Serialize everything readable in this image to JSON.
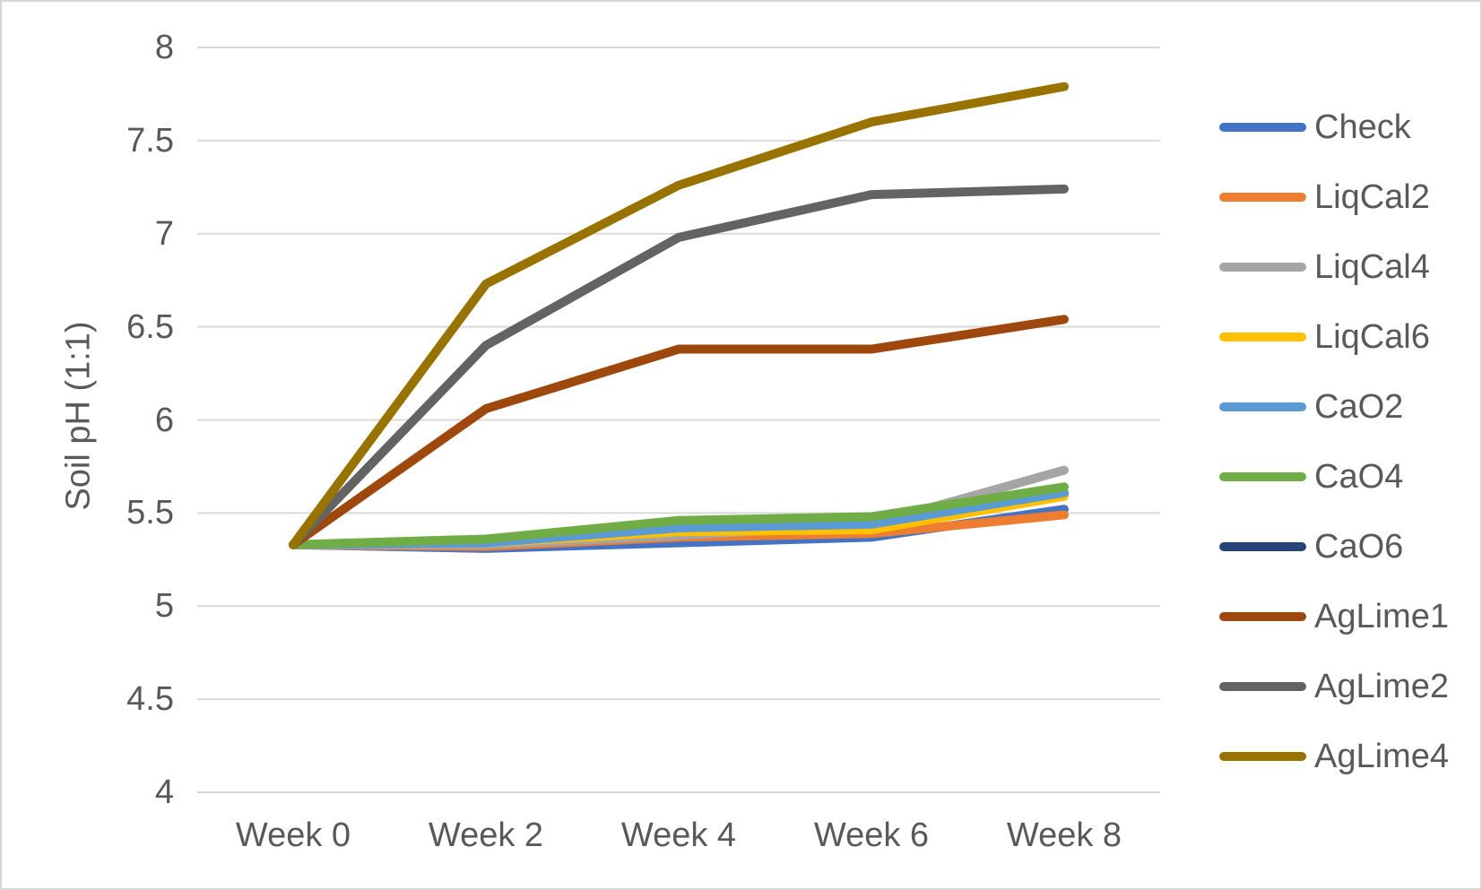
{
  "chart_data": {
    "type": "line",
    "title": "",
    "xlabel": "",
    "ylabel": "Soil pH (1:1)",
    "categories": [
      "Week 0",
      "Week 2",
      "Week 4",
      "Week 6",
      "Week 8"
    ],
    "ylim": [
      4,
      8
    ],
    "ytick_step": 0.5,
    "ytick_labels": [
      "4",
      "4.5",
      "5",
      "5.5",
      "6",
      "6.5",
      "7",
      "7.5",
      "8"
    ],
    "grid": true,
    "legend_position": "right",
    "series": [
      {
        "name": "Check",
        "color": "#4472C4",
        "values": [
          5.33,
          5.31,
          5.34,
          5.37,
          5.52
        ]
      },
      {
        "name": "LiqCal2",
        "color": "#ED7D31",
        "values": [
          5.33,
          5.32,
          5.37,
          5.39,
          5.49
        ]
      },
      {
        "name": "LiqCal4",
        "color": "#A5A5A5",
        "values": [
          5.33,
          5.33,
          5.38,
          5.44,
          5.73
        ]
      },
      {
        "name": "LiqCal6",
        "color": "#FFC000",
        "values": [
          5.33,
          5.34,
          5.4,
          5.41,
          5.59
        ]
      },
      {
        "name": "CaO2",
        "color": "#5B9BD5",
        "values": [
          5.33,
          5.34,
          5.42,
          5.44,
          5.61
        ]
      },
      {
        "name": "CaO4",
        "color": "#70AD47",
        "values": [
          5.33,
          5.36,
          5.46,
          5.48,
          5.64
        ]
      },
      {
        "name": "CaO6",
        "color": "#264478",
        "values": [
          5.33,
          5.34,
          5.42,
          5.43,
          5.6
        ]
      },
      {
        "name": "AgLime1",
        "color": "#9E480E",
        "values": [
          5.33,
          6.06,
          6.38,
          6.38,
          6.54
        ]
      },
      {
        "name": "AgLime2",
        "color": "#636363",
        "values": [
          5.33,
          6.4,
          6.98,
          7.21,
          7.24
        ]
      },
      {
        "name": "AgLime4",
        "color": "#997300",
        "values": [
          5.33,
          6.73,
          7.26,
          7.6,
          7.79
        ]
      }
    ],
    "draw_order": [
      "CaO6",
      "Check",
      "LiqCal2",
      "LiqCal4",
      "LiqCal6",
      "CaO2",
      "CaO4",
      "AgLime1",
      "AgLime2",
      "AgLime4"
    ]
  },
  "colors": {
    "background": "#FFFFFF",
    "frame_border": "#D6D6D6",
    "gridline": "#D9D9D9",
    "text": "#595959"
  }
}
